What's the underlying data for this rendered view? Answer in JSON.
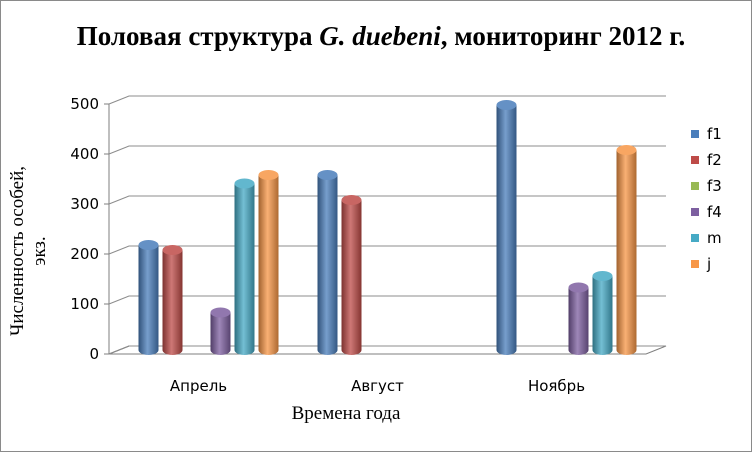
{
  "chart_data": {
    "type": "bar",
    "title_part1": "Половая структура ",
    "title_species": "G. duebeni",
    "title_part2": ", мониторинг 2012 г.",
    "xlabel": "Времена года",
    "ylabel": "Численность особей, экз.",
    "categories": [
      "Апрель",
      "Август",
      "Ноябрь"
    ],
    "ylim": [
      0,
      500
    ],
    "yticks": [
      "0",
      "100",
      "200",
      "300",
      "400",
      "500"
    ],
    "grid": true,
    "legend_position": "right",
    "series": [
      {
        "name": "f1",
        "color": "#4a7ebb",
        "values": [
          210,
          350,
          490
        ]
      },
      {
        "name": "f2",
        "color": "#be4b48",
        "values": [
          200,
          300,
          0
        ]
      },
      {
        "name": "f3",
        "color": "#98b954",
        "values": [
          0,
          0,
          0
        ]
      },
      {
        "name": "f4",
        "color": "#7d5fa0",
        "values": [
          75,
          0,
          125
        ]
      },
      {
        "name": "m",
        "color": "#46aac5",
        "values": [
          333,
          0,
          148
        ]
      },
      {
        "name": "j",
        "color": "#f79646",
        "values": [
          350,
          0,
          400
        ]
      }
    ]
  }
}
